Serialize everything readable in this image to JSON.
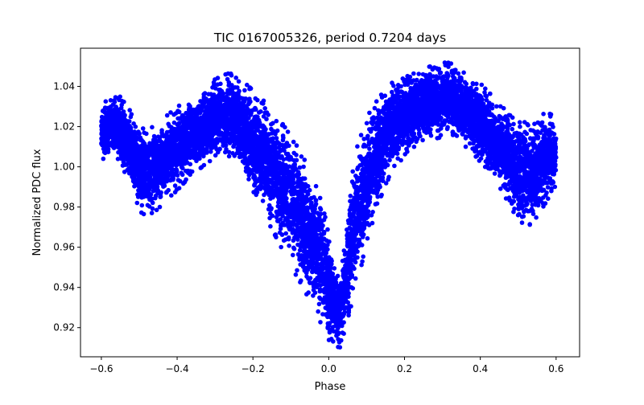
{
  "colors": {
    "series": "#0000ff",
    "axes": "#000000",
    "background": "#ffffff"
  },
  "chart_data": {
    "type": "scatter",
    "title": "TIC 0167005326, period 0.7204 days",
    "xlabel": "Phase",
    "ylabel": "Normalized PDC flux",
    "xlim": [
      -0.655,
      0.662
    ],
    "ylim": [
      0.9055,
      1.059
    ],
    "xticks": [
      -0.6,
      -0.4,
      -0.2,
      0.0,
      0.2,
      0.4,
      0.6
    ],
    "xtick_labels": [
      "−0.6",
      "−0.4",
      "−0.2",
      "0.0",
      "0.2",
      "0.4",
      "0.6"
    ],
    "yticks": [
      0.92,
      0.94,
      0.96,
      0.98,
      1.0,
      1.02,
      1.04
    ],
    "ytick_labels": [
      "0.92",
      "0.94",
      "0.96",
      "0.98",
      "1.00",
      "1.02",
      "1.04"
    ],
    "grid": false,
    "legend": "none",
    "marker": "circle",
    "series": [
      {
        "x": [
          -0.6,
          -0.575,
          -0.55,
          -0.525,
          -0.5,
          -0.475,
          -0.45,
          -0.425,
          -0.4,
          -0.375,
          -0.35,
          -0.325,
          -0.3,
          -0.275,
          -0.26,
          -0.25,
          -0.225,
          -0.2,
          -0.175,
          -0.15,
          -0.125,
          -0.1,
          -0.075,
          -0.05,
          -0.025,
          -0.01,
          0.0,
          0.01,
          0.02,
          0.03,
          0.04,
          0.05,
          0.06,
          0.075,
          0.1,
          0.125,
          0.15,
          0.175,
          0.2,
          0.225,
          0.25,
          0.275,
          0.3,
          0.31,
          0.325,
          0.35,
          0.375,
          0.4,
          0.425,
          0.45,
          0.475,
          0.5,
          0.525,
          0.55,
          0.575,
          0.6
        ],
        "y": [
          1.017,
          1.02,
          1.018,
          1.01,
          1.0,
          0.997,
          1.0,
          1.005,
          1.009,
          1.013,
          1.017,
          1.021,
          1.024,
          1.025,
          1.026,
          1.024,
          1.019,
          1.012,
          1.006,
          0.999,
          0.991,
          0.983,
          0.975,
          0.966,
          0.955,
          0.947,
          0.94,
          0.934,
          0.93,
          0.931,
          0.938,
          0.95,
          0.963,
          0.976,
          0.993,
          1.006,
          1.016,
          1.022,
          1.026,
          1.029,
          1.031,
          1.032,
          1.033,
          1.034,
          1.033,
          1.03,
          1.026,
          1.022,
          1.017,
          1.011,
          1.004,
          0.998,
          0.996,
          1.0,
          1.005,
          1.008
        ],
        "spread": [
          0.011,
          0.011,
          0.013,
          0.014,
          0.017,
          0.017,
          0.016,
          0.016,
          0.016,
          0.015,
          0.015,
          0.015,
          0.015,
          0.016,
          0.016,
          0.016,
          0.018,
          0.02,
          0.022,
          0.023,
          0.024,
          0.025,
          0.025,
          0.025,
          0.024,
          0.022,
          0.02,
          0.017,
          0.015,
          0.016,
          0.018,
          0.022,
          0.024,
          0.026,
          0.024,
          0.021,
          0.019,
          0.017,
          0.016,
          0.015,
          0.014,
          0.014,
          0.014,
          0.014,
          0.014,
          0.014,
          0.014,
          0.015,
          0.015,
          0.016,
          0.017,
          0.019,
          0.02,
          0.019,
          0.017,
          0.013
        ]
      }
    ]
  }
}
